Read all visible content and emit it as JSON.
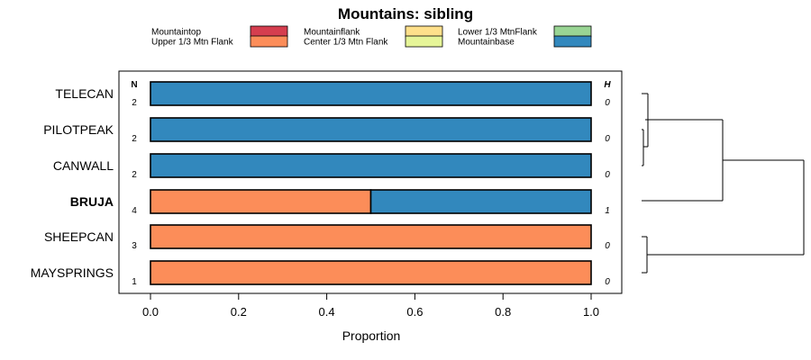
{
  "chart_data": {
    "type": "bar",
    "orientation": "horizontal",
    "stacked": true,
    "title": "Mountains: sibling",
    "xlabel": "Proportion",
    "xlim": [
      0,
      1
    ],
    "xticks": [
      "0.0",
      "0.2",
      "0.4",
      "0.6",
      "0.8",
      "1.0"
    ],
    "n_header": "N",
    "h_header": "H",
    "legend": [
      {
        "name": "Mountaintop",
        "color": "#d53e4f"
      },
      {
        "name": "Upper 1/3 Mtn Flank",
        "color": "#fc8d59"
      },
      {
        "name": "Mountainflank",
        "color": "#fee08b"
      },
      {
        "name": "Center 1/3 Mtn Flank",
        "color": "#e6f598"
      },
      {
        "name": "Lower 1/3 MtnFlank",
        "color": "#99d594"
      },
      {
        "name": "Mountainbase",
        "color": "#3288bd"
      }
    ],
    "categories": [
      "TELECAN",
      "PILOTPEAK",
      "CANWALL",
      "BRUJA",
      "SHEEPCAN",
      "MAYSPRINGS"
    ],
    "bold_categories": [
      "BRUJA"
    ],
    "n": [
      "2",
      "2",
      "2",
      "4",
      "3",
      "1"
    ],
    "h": [
      "0",
      "0",
      "0",
      "1",
      "0",
      "0"
    ],
    "series": [
      {
        "name": "Upper 1/3 Mtn Flank",
        "color": "#fc8d59",
        "values": [
          0,
          0,
          0,
          0.5,
          1,
          1
        ]
      },
      {
        "name": "Mountainbase",
        "color": "#3288bd",
        "values": [
          1,
          1,
          1,
          0.5,
          0,
          0
        ]
      }
    ],
    "dendrogram": "merges (TELECAN, PILOTPEAK, CANWALL) with BRUJA, and SHEEPCAN with MAYSPRINGS, joined at root"
  }
}
